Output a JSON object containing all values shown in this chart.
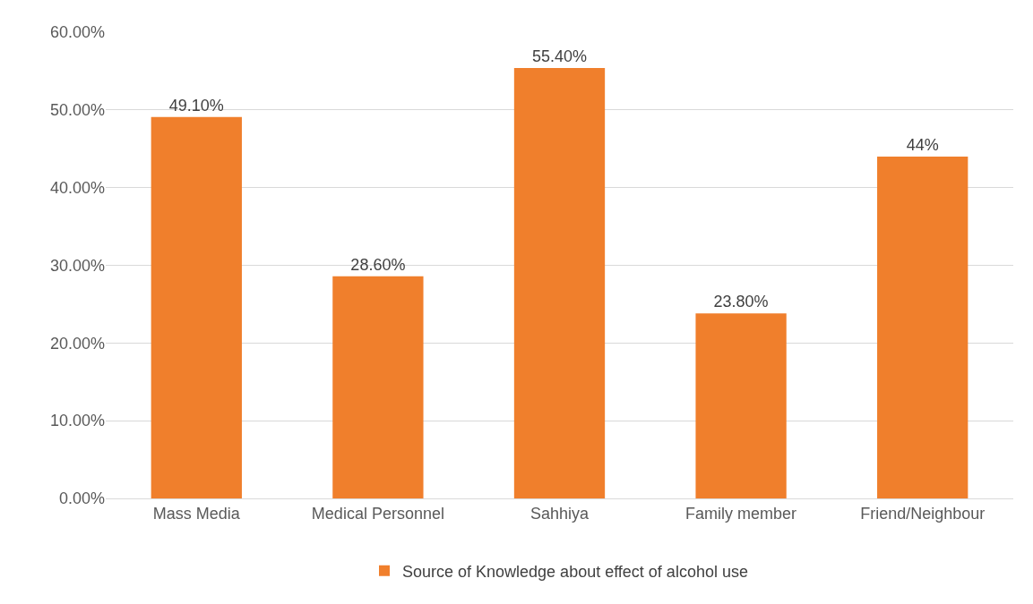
{
  "chart_data": {
    "type": "bar",
    "categories": [
      "Mass Media",
      "Medical Personnel",
      "Sahhiya",
      "Family member",
      "Friend/Neighbour"
    ],
    "series": [
      {
        "name": "Source of Knowledge about effect of alcohol use",
        "color": "#f07f2c",
        "values": [
          49.1,
          28.6,
          55.4,
          23.8,
          44
        ],
        "value_labels": [
          "49.10%",
          "28.60%",
          "55.40%",
          "23.80%",
          "44%"
        ]
      }
    ],
    "ylim": [
      0,
      60
    ],
    "yticks": [
      {
        "value": 0,
        "label": "0.00%"
      },
      {
        "value": 10,
        "label": "10.00%"
      },
      {
        "value": 20,
        "label": "20.00%"
      },
      {
        "value": 30,
        "label": "30.00%"
      },
      {
        "value": 40,
        "label": "40.00%"
      },
      {
        "value": 50,
        "label": "50.00%"
      },
      {
        "value": 60,
        "label": "60.00%"
      }
    ],
    "grid": "y",
    "legend": "bottom"
  }
}
